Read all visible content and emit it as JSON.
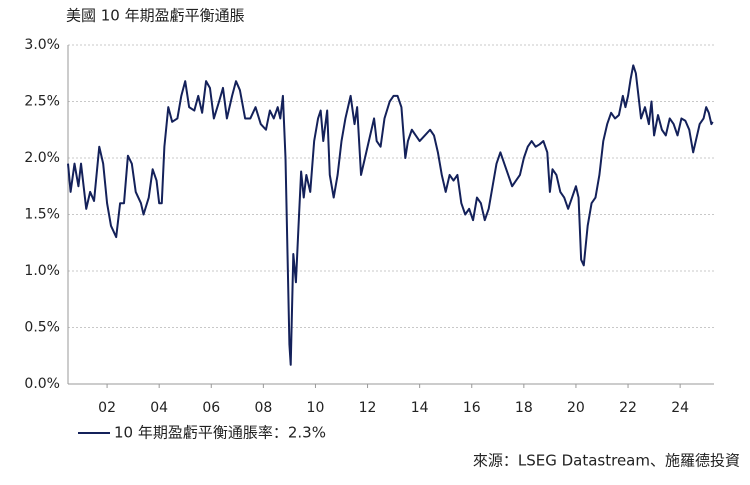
{
  "chart_data": {
    "type": "line",
    "title": "美國 10 年期盈虧平衡通脹",
    "source": "來源：LSEG Datastream、施羅德投資",
    "xlim": [
      2000.5,
      2025.3
    ],
    "xticks": [
      {
        "value": 2002,
        "label": "02"
      },
      {
        "value": 2004,
        "label": "04"
      },
      {
        "value": 2006,
        "label": "06"
      },
      {
        "value": 2008,
        "label": "08"
      },
      {
        "value": 2010,
        "label": "10"
      },
      {
        "value": 2012,
        "label": "12"
      },
      {
        "value": 2014,
        "label": "14"
      },
      {
        "value": 2016,
        "label": "16"
      },
      {
        "value": 2018,
        "label": "18"
      },
      {
        "value": 2020,
        "label": "20"
      },
      {
        "value": 2022,
        "label": "22"
      },
      {
        "value": 2024,
        "label": "24"
      }
    ],
    "ylim": [
      0,
      3
    ],
    "yticks": [
      {
        "value": 0,
        "label": "0.0%"
      },
      {
        "value": 0.5,
        "label": "0.5%"
      },
      {
        "value": 1,
        "label": "1.0%"
      },
      {
        "value": 1.5,
        "label": "1.5%"
      },
      {
        "value": 2,
        "label": "2.0%"
      },
      {
        "value": 2.5,
        "label": "2.5%"
      },
      {
        "value": 3,
        "label": "3.0%"
      }
    ],
    "grid": true,
    "x": [
      2000.5,
      2000.6,
      2000.75,
      2000.9,
      2001.0,
      2001.2,
      2001.35,
      2001.5,
      2001.7,
      2001.85,
      2002.0,
      2002.15,
      2002.35,
      2002.5,
      2002.65,
      2002.8,
      2002.95,
      2003.1,
      2003.3,
      2003.4,
      2003.6,
      2003.75,
      2003.9,
      2004.0,
      2004.1,
      2004.2,
      2004.35,
      2004.5,
      2004.7,
      2004.85,
      2005.0,
      2005.15,
      2005.35,
      2005.5,
      2005.65,
      2005.8,
      2005.95,
      2006.1,
      2006.3,
      2006.45,
      2006.6,
      2006.8,
      2006.95,
      2007.1,
      2007.3,
      2007.5,
      2007.7,
      2007.9,
      2008.1,
      2008.25,
      2008.4,
      2008.55,
      2008.65,
      2008.75,
      2008.85,
      2008.95,
      2009.0,
      2009.05,
      2009.15,
      2009.25,
      2009.35,
      2009.45,
      2009.55,
      2009.65,
      2009.8,
      2009.95,
      2010.1,
      2010.2,
      2010.3,
      2010.45,
      2010.55,
      2010.7,
      2010.85,
      2011.0,
      2011.15,
      2011.35,
      2011.5,
      2011.6,
      2011.75,
      2011.9,
      2012.1,
      2012.25,
      2012.35,
      2012.5,
      2012.65,
      2012.85,
      2013.0,
      2013.15,
      2013.3,
      2013.45,
      2013.55,
      2013.7,
      2013.85,
      2014.0,
      2014.2,
      2014.4,
      2014.55,
      2014.7,
      2014.85,
      2015.0,
      2015.15,
      2015.3,
      2015.45,
      2015.6,
      2015.75,
      2015.9,
      2016.05,
      2016.2,
      2016.35,
      2016.5,
      2016.65,
      2016.8,
      2016.95,
      2017.1,
      2017.25,
      2017.4,
      2017.55,
      2017.7,
      2017.85,
      2018.0,
      2018.15,
      2018.3,
      2018.45,
      2018.6,
      2018.75,
      2018.9,
      2019.0,
      2019.1,
      2019.25,
      2019.4,
      2019.55,
      2019.7,
      2019.85,
      2020.0,
      2020.1,
      2020.2,
      2020.3,
      2020.45,
      2020.6,
      2020.75,
      2020.9,
      2021.05,
      2021.2,
      2021.35,
      2021.5,
      2021.65,
      2021.8,
      2021.9,
      2022.0,
      2022.1,
      2022.2,
      2022.3,
      2022.4,
      2022.5,
      2022.65,
      2022.8,
      2022.9,
      2023.0,
      2023.15,
      2023.3,
      2023.45,
      2023.6,
      2023.75,
      2023.9,
      2024.05,
      2024.2,
      2024.35,
      2024.5,
      2024.6,
      2024.75,
      2024.9,
      2025.0,
      2025.1,
      2025.2,
      2025.25
    ],
    "series": [
      {
        "name": "10 年期盈虧平衡通脹率：2.3%",
        "color": "#14215a",
        "values": [
          1.95,
          1.7,
          1.95,
          1.75,
          1.95,
          1.55,
          1.7,
          1.62,
          2.1,
          1.95,
          1.6,
          1.4,
          1.3,
          1.6,
          1.6,
          2.02,
          1.95,
          1.7,
          1.6,
          1.5,
          1.65,
          1.9,
          1.8,
          1.6,
          1.6,
          2.1,
          2.45,
          2.32,
          2.35,
          2.55,
          2.68,
          2.45,
          2.42,
          2.55,
          2.4,
          2.68,
          2.62,
          2.35,
          2.5,
          2.62,
          2.35,
          2.55,
          2.68,
          2.6,
          2.35,
          2.35,
          2.45,
          2.3,
          2.25,
          2.42,
          2.35,
          2.45,
          2.35,
          2.55,
          2.0,
          0.9,
          0.35,
          0.17,
          1.15,
          0.9,
          1.4,
          1.88,
          1.65,
          1.85,
          1.7,
          2.15,
          2.35,
          2.42,
          2.15,
          2.42,
          1.85,
          1.65,
          1.85,
          2.15,
          2.35,
          2.55,
          2.3,
          2.45,
          1.85,
          2.0,
          2.2,
          2.35,
          2.15,
          2.1,
          2.35,
          2.5,
          2.55,
          2.55,
          2.45,
          2.0,
          2.15,
          2.25,
          2.2,
          2.15,
          2.2,
          2.25,
          2.2,
          2.05,
          1.85,
          1.7,
          1.85,
          1.8,
          1.85,
          1.6,
          1.5,
          1.55,
          1.45,
          1.65,
          1.6,
          1.45,
          1.55,
          1.75,
          1.95,
          2.05,
          1.95,
          1.85,
          1.75,
          1.8,
          1.85,
          2.0,
          2.1,
          2.15,
          2.1,
          2.12,
          2.15,
          2.05,
          1.7,
          1.9,
          1.85,
          1.7,
          1.65,
          1.55,
          1.65,
          1.75,
          1.65,
          1.1,
          1.05,
          1.4,
          1.6,
          1.65,
          1.85,
          2.15,
          2.3,
          2.4,
          2.35,
          2.38,
          2.55,
          2.45,
          2.55,
          2.7,
          2.82,
          2.75,
          2.55,
          2.35,
          2.45,
          2.3,
          2.5,
          2.2,
          2.38,
          2.25,
          2.2,
          2.35,
          2.3,
          2.2,
          2.35,
          2.33,
          2.25,
          2.05,
          2.15,
          2.3,
          2.35,
          2.45,
          2.4,
          2.3,
          2.32
        ]
      }
    ]
  }
}
